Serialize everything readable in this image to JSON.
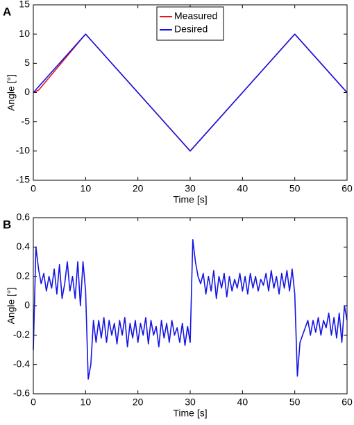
{
  "chart_data": [
    {
      "type": "line",
      "label": "A",
      "xlabel": "Time [s]",
      "ylabel": "Angle [°]",
      "x": [
        0,
        1,
        10,
        30,
        50,
        60
      ],
      "series": [
        {
          "name": "Measured",
          "color": "#e8141c",
          "values": [
            0,
            0.4,
            10,
            -10,
            10,
            0
          ]
        },
        {
          "name": "Desired",
          "color": "#1414e6",
          "values": [
            0,
            1,
            10,
            -10,
            10,
            0
          ]
        }
      ],
      "xlim": [
        0,
        60
      ],
      "xticks": [
        0,
        10,
        20,
        30,
        40,
        50,
        60
      ],
      "ylim": [
        -15,
        15
      ],
      "yticks": [
        -15,
        -10,
        -5,
        0,
        5,
        10,
        15
      ],
      "legend": "upper center",
      "grid": false
    },
    {
      "type": "line",
      "label": "B",
      "xlabel": "Time [s]",
      "ylabel": "Angle [°]",
      "x": [
        0,
        0.5,
        1,
        1.5,
        2,
        2.5,
        3,
        3.5,
        4,
        4.5,
        5,
        5.5,
        6,
        6.5,
        7,
        7.5,
        8,
        8.5,
        9,
        9.5,
        10,
        10.5,
        11,
        11.5,
        12,
        12.5,
        13,
        13.5,
        14,
        14.5,
        15,
        15.5,
        16,
        16.5,
        17,
        17.5,
        18,
        18.5,
        19,
        19.5,
        20,
        20.5,
        21,
        21.5,
        22,
        22.5,
        23,
        23.5,
        24,
        24.5,
        25,
        25.5,
        26,
        26.5,
        27,
        27.5,
        28,
        28.5,
        29,
        29.5,
        30,
        30.5,
        31,
        31.5,
        32,
        32.5,
        33,
        33.5,
        34,
        34.5,
        35,
        35.5,
        36,
        36.5,
        37,
        37.5,
        38,
        38.5,
        39,
        39.5,
        40,
        40.5,
        41,
        41.5,
        42,
        42.5,
        43,
        43.5,
        44,
        44.5,
        45,
        45.5,
        46,
        46.5,
        47,
        47.5,
        48,
        48.5,
        49,
        49.5,
        50,
        50.5,
        51,
        51.5,
        52,
        52.5,
        53,
        53.5,
        54,
        54.5,
        55,
        55.5,
        56,
        56.5,
        57,
        57.5,
        58,
        58.5,
        59,
        59.5,
        60
      ],
      "color": "#1414e6",
      "values": [
        -0.3,
        0.4,
        0.25,
        0.15,
        0.22,
        0.1,
        0.2,
        0.12,
        0.25,
        0.08,
        0.28,
        0.05,
        0.15,
        0.3,
        0.1,
        0.2,
        0.05,
        0.3,
        0.0,
        0.3,
        0.1,
        -0.5,
        -0.4,
        -0.1,
        -0.25,
        -0.1,
        -0.22,
        -0.08,
        -0.25,
        -0.1,
        -0.2,
        -0.12,
        -0.26,
        -0.1,
        -0.2,
        -0.08,
        -0.28,
        -0.12,
        -0.22,
        -0.1,
        -0.25,
        -0.12,
        -0.2,
        -0.08,
        -0.26,
        -0.1,
        -0.2,
        -0.14,
        -0.28,
        -0.1,
        -0.22,
        -0.12,
        -0.25,
        -0.1,
        -0.2,
        -0.15,
        -0.25,
        -0.12,
        -0.27,
        -0.14,
        -0.25,
        0.45,
        0.3,
        0.2,
        0.15,
        0.22,
        0.08,
        0.2,
        0.1,
        0.24,
        0.05,
        0.2,
        0.12,
        0.22,
        0.06,
        0.2,
        0.1,
        0.18,
        0.12,
        0.22,
        0.1,
        0.2,
        0.08,
        0.22,
        0.12,
        0.2,
        0.1,
        0.18,
        0.14,
        0.22,
        0.1,
        0.24,
        0.12,
        0.2,
        0.08,
        0.22,
        0.12,
        0.24,
        0.1,
        0.25,
        0.08,
        -0.48,
        -0.25,
        -0.2,
        -0.15,
        -0.1,
        -0.2,
        -0.1,
        -0.18,
        -0.08,
        -0.2,
        -0.1,
        -0.15,
        -0.05,
        -0.2,
        -0.08,
        -0.22,
        -0.05,
        -0.25,
        0.0,
        -0.1
      ],
      "xlim": [
        0,
        60
      ],
      "xticks": [
        0,
        10,
        20,
        30,
        40,
        50,
        60
      ],
      "ylim": [
        -0.6,
        0.6
      ],
      "yticks": [
        -0.6,
        -0.4,
        -0.2,
        0,
        0.2,
        0.4,
        0.6
      ],
      "grid": false
    }
  ]
}
